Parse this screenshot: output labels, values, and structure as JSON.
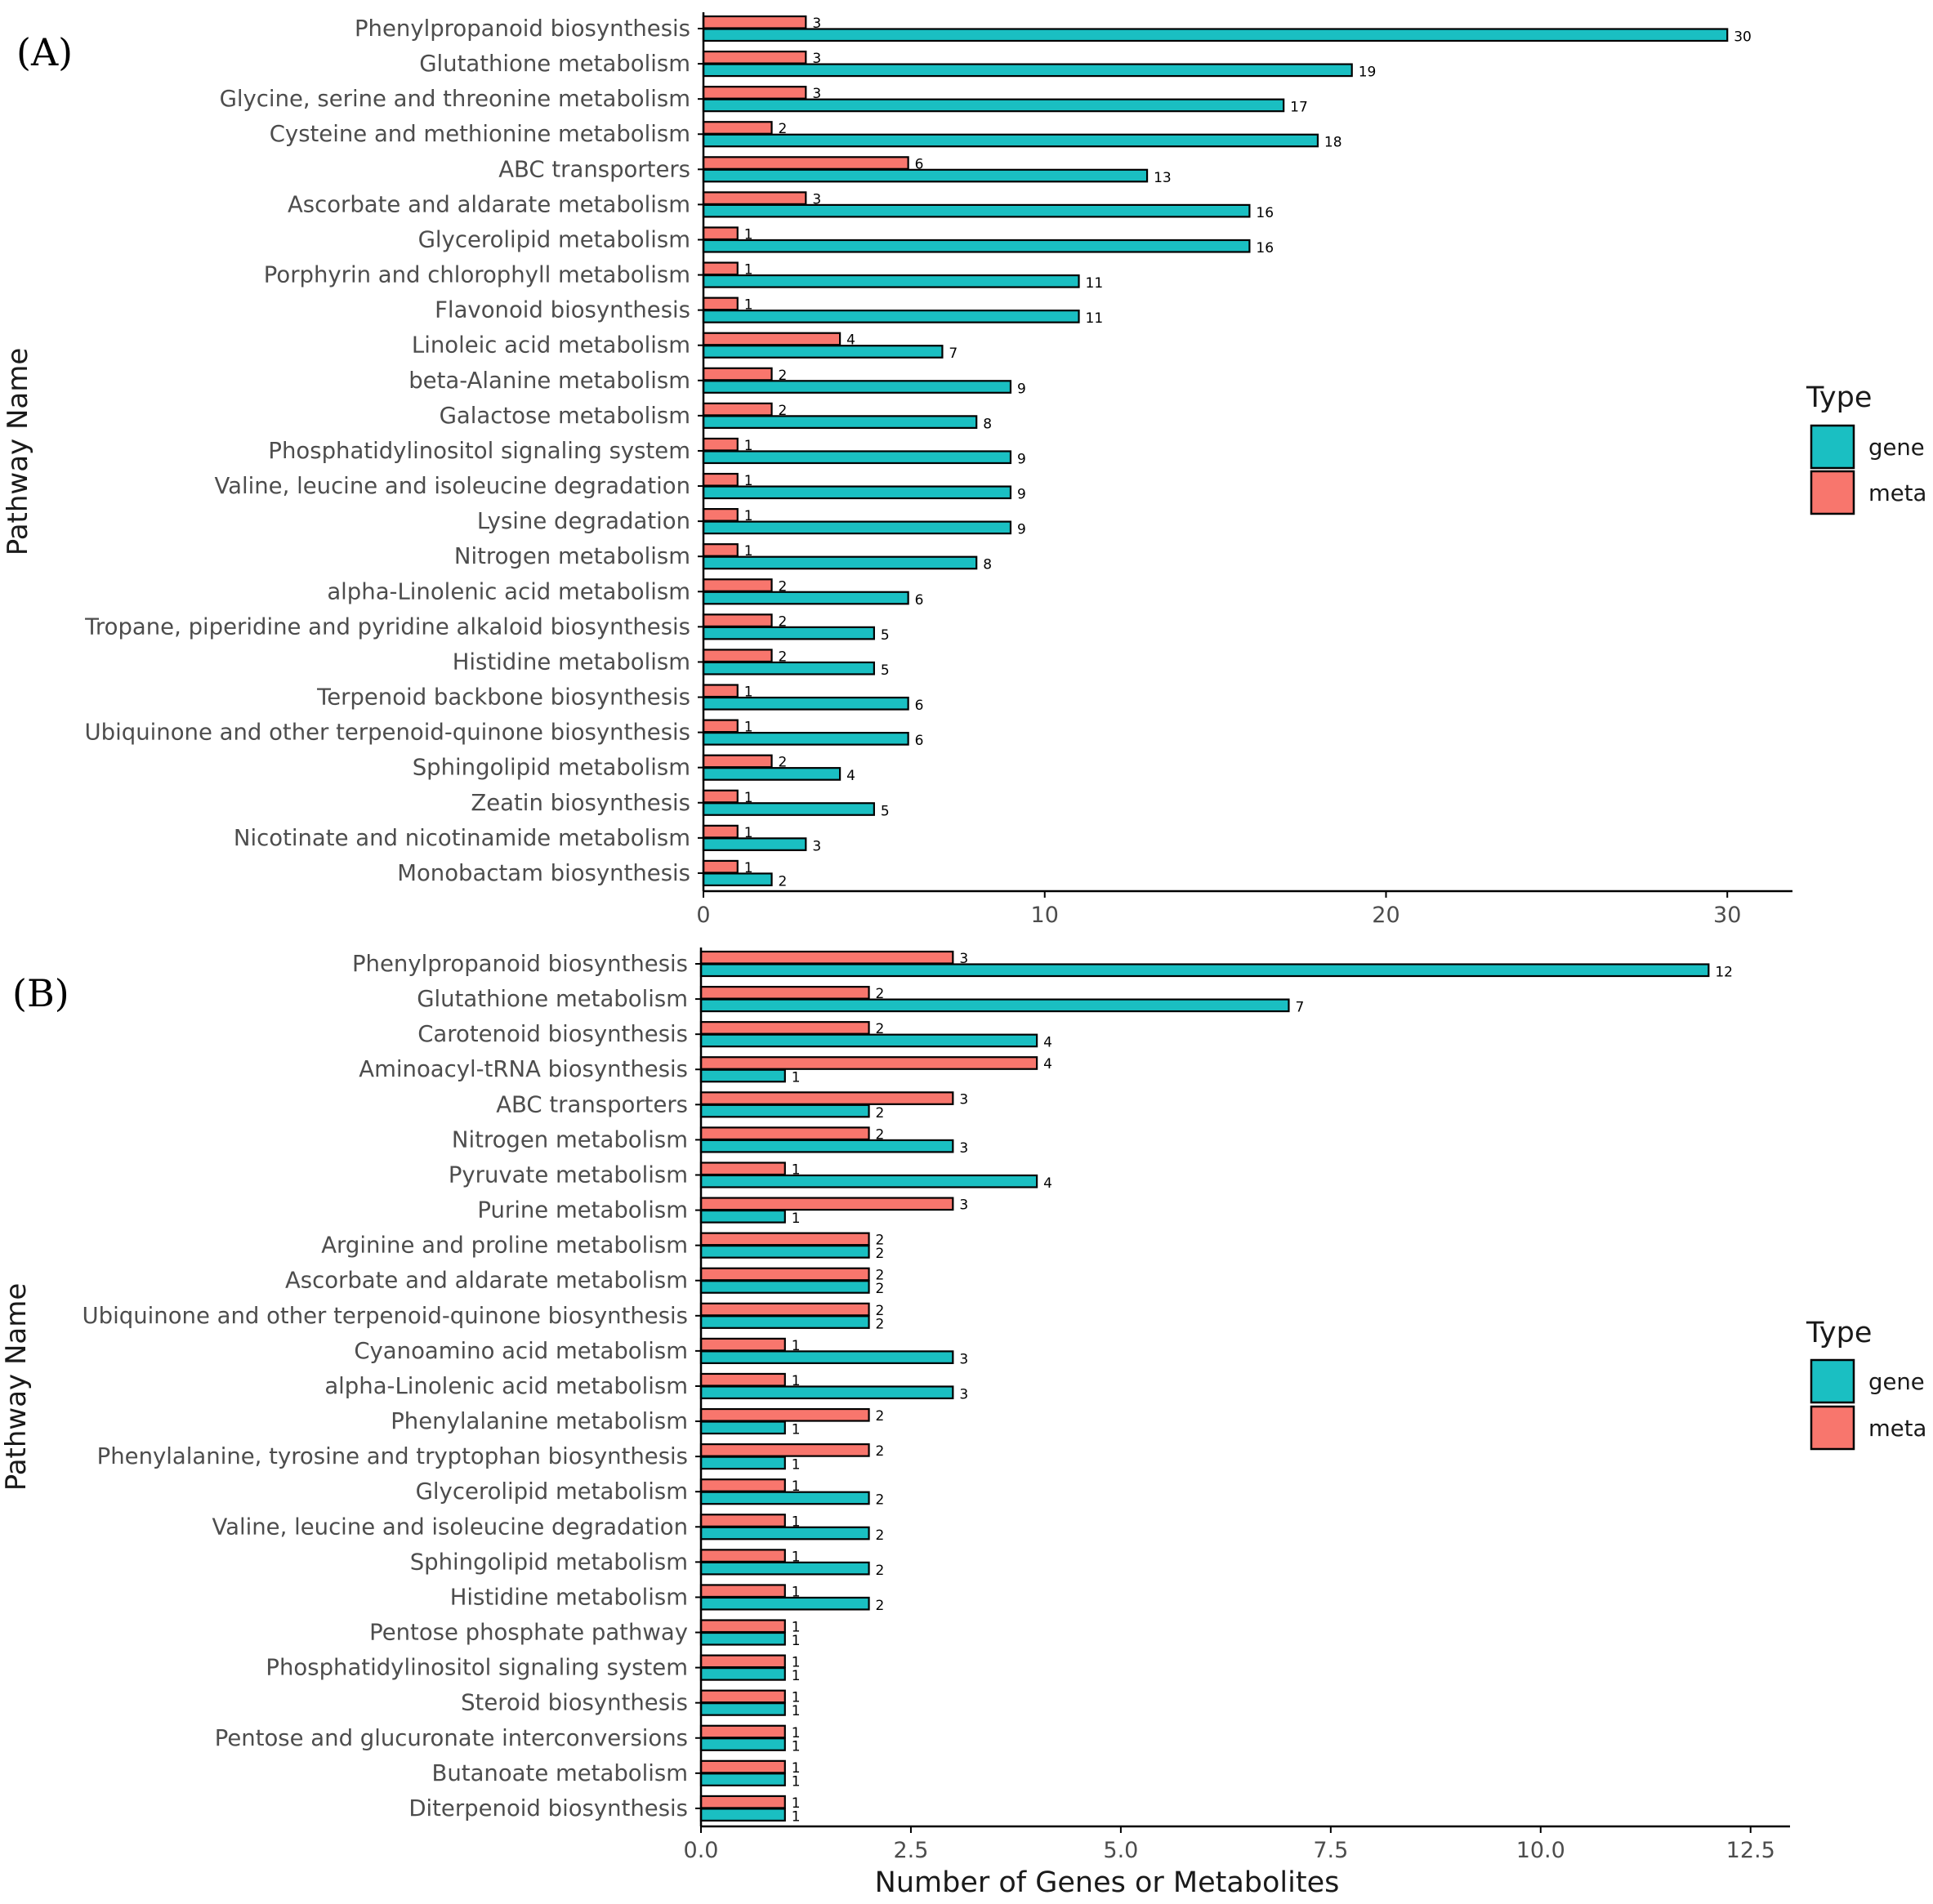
{
  "colors": {
    "gene": "#1ABFC2",
    "meta": "#F8766D",
    "axis": "#000000",
    "label": "#4D4D4D",
    "title": "#1A1A1A"
  },
  "xlabel": "Number of Genes or Metabolites",
  "chart_data": [
    {
      "type": "bar",
      "orientation": "horizontal",
      "panel_label": "(A)",
      "ylabel": "Pathway Name",
      "legend": {
        "title": "Type",
        "placement": "right",
        "entries": [
          "gene",
          "meta"
        ]
      },
      "xlim": [
        0,
        31
      ],
      "xticks": [
        0,
        10,
        20,
        30
      ],
      "xtick_labels": [
        "0",
        "10",
        "20",
        "30"
      ],
      "categories": [
        "Phenylpropanoid biosynthesis",
        "Glutathione metabolism",
        "Glycine, serine and threonine metabolism",
        "Cysteine and methionine metabolism",
        "ABC transporters",
        "Ascorbate and aldarate metabolism",
        "Glycerolipid metabolism",
        "Porphyrin and chlorophyll metabolism",
        "Flavonoid biosynthesis",
        "Linoleic acid metabolism",
        "beta-Alanine metabolism",
        "Galactose metabolism",
        "Phosphatidylinositol signaling system",
        "Valine, leucine and isoleucine degradation",
        "Lysine degradation",
        "Nitrogen metabolism",
        "alpha-Linolenic acid metabolism",
        "Tropane, piperidine and pyridine alkaloid biosynthesis",
        "Histidine metabolism",
        "Terpenoid backbone biosynthesis",
        "Ubiquinone and other terpenoid-quinone biosynthesis",
        "Sphingolipid metabolism",
        "Zeatin biosynthesis",
        "Nicotinate and nicotinamide metabolism",
        "Monobactam biosynthesis"
      ],
      "series": [
        {
          "name": "meta",
          "values": [
            3,
            3,
            3,
            2,
            6,
            3,
            1,
            1,
            1,
            4,
            2,
            2,
            1,
            1,
            1,
            1,
            2,
            2,
            2,
            1,
            1,
            2,
            1,
            1,
            1
          ]
        },
        {
          "name": "gene",
          "values": [
            30,
            19,
            17,
            18,
            13,
            16,
            16,
            11,
            11,
            7,
            9,
            8,
            9,
            9,
            9,
            8,
            6,
            5,
            5,
            6,
            6,
            4,
            5,
            3,
            2
          ]
        }
      ]
    },
    {
      "type": "bar",
      "orientation": "horizontal",
      "panel_label": "(B)",
      "ylabel": "Pathway Name",
      "legend": {
        "title": "Type",
        "placement": "right",
        "entries": [
          "gene",
          "meta"
        ]
      },
      "xlim": [
        0,
        12.6
      ],
      "xticks": [
        0,
        2.5,
        5,
        7.5,
        10,
        12.5
      ],
      "xtick_labels": [
        "0.0",
        "2.5",
        "5.0",
        "7.5",
        "10.0",
        "12.5"
      ],
      "categories": [
        "Phenylpropanoid biosynthesis",
        "Glutathione metabolism",
        "Carotenoid biosynthesis",
        "Aminoacyl-tRNA biosynthesis",
        "ABC transporters",
        "Nitrogen metabolism",
        "Pyruvate metabolism",
        "Purine metabolism",
        "Arginine and proline metabolism",
        "Ascorbate and aldarate metabolism",
        "Ubiquinone and other terpenoid-quinone biosynthesis",
        "Cyanoamino acid metabolism",
        "alpha-Linolenic acid metabolism",
        "Phenylalanine metabolism",
        "Phenylalanine, tyrosine and tryptophan biosynthesis",
        "Glycerolipid metabolism",
        "Valine, leucine and isoleucine degradation",
        "Sphingolipid metabolism",
        "Histidine metabolism",
        "Pentose phosphate pathway",
        "Phosphatidylinositol signaling system",
        "Steroid biosynthesis",
        "Pentose and glucuronate interconversions",
        "Butanoate metabolism",
        "Diterpenoid biosynthesis"
      ],
      "series": [
        {
          "name": "meta",
          "values": [
            3,
            2,
            2,
            4,
            3,
            2,
            1,
            3,
            2,
            2,
            2,
            1,
            1,
            2,
            2,
            1,
            1,
            1,
            1,
            1,
            1,
            1,
            1,
            1,
            1
          ]
        },
        {
          "name": "gene",
          "values": [
            12,
            7,
            4,
            1,
            2,
            3,
            4,
            1,
            2,
            2,
            2,
            3,
            3,
            1,
            1,
            2,
            2,
            2,
            2,
            1,
            1,
            1,
            1,
            1,
            1
          ]
        }
      ]
    }
  ]
}
